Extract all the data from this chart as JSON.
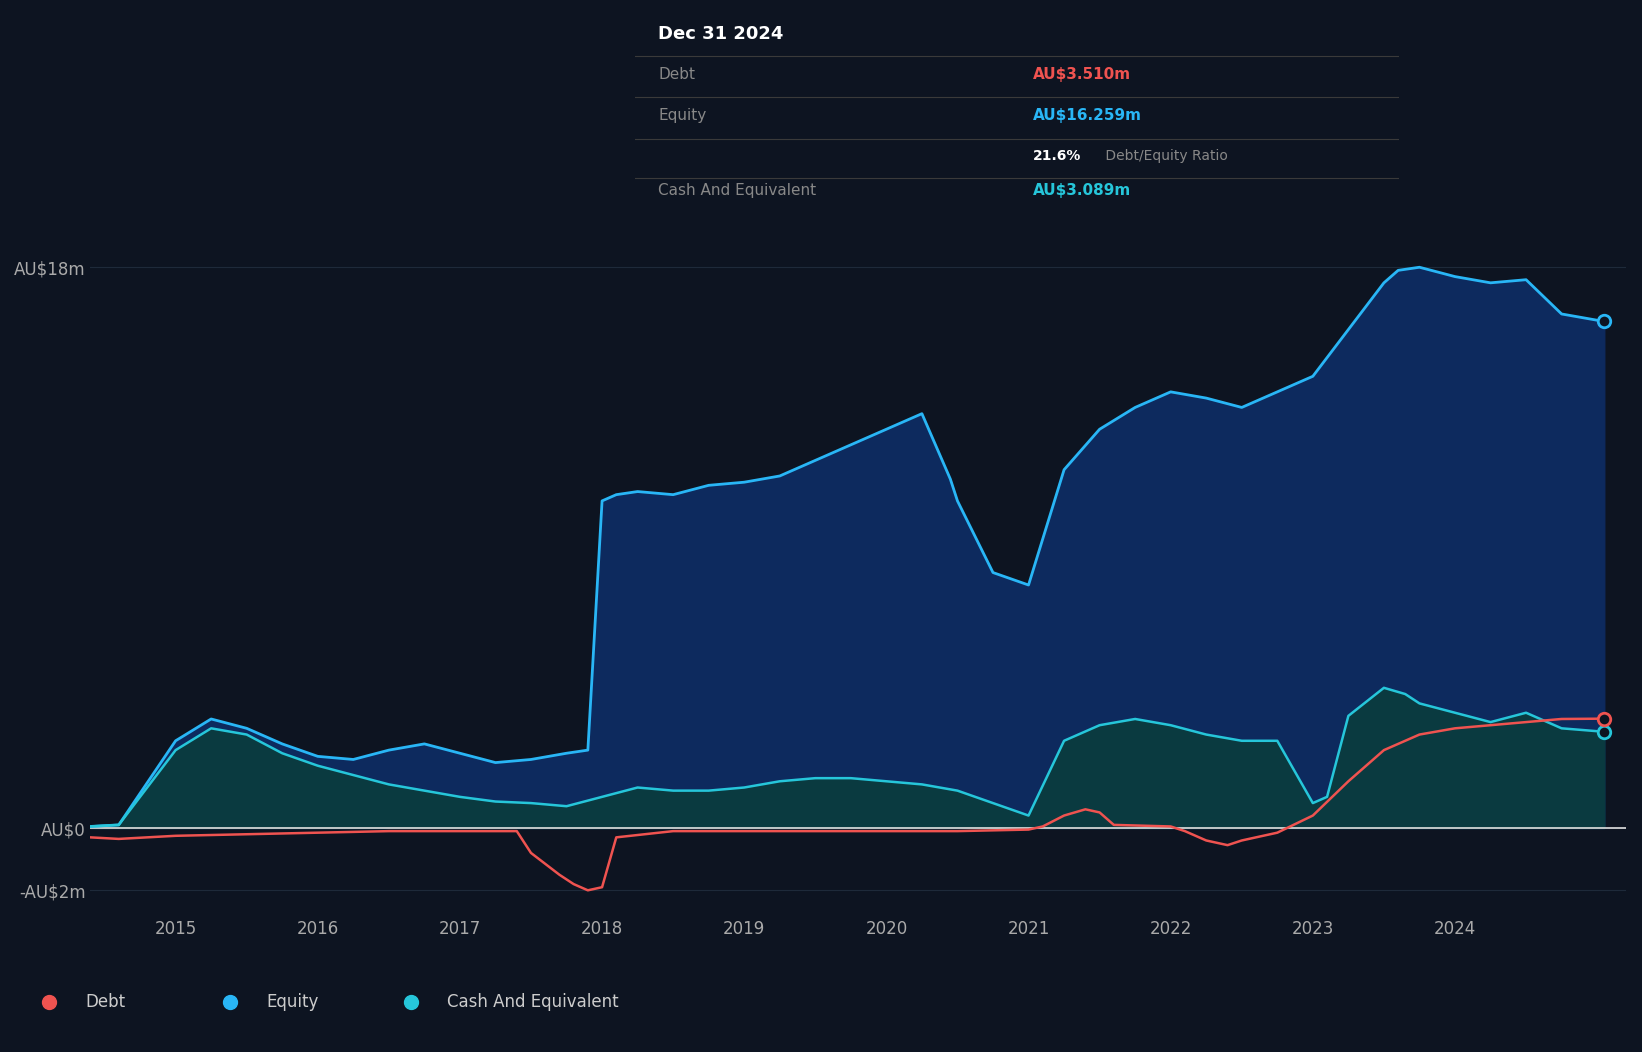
{
  "background_color": "#0d1421",
  "plot_bg_color": "#0d1421",
  "grid_color": "#1e2a3a",
  "equity_color": "#29b6f6",
  "equity_fill": "#0d2a5e",
  "debt_color": "#ef5350",
  "cash_color": "#26c6da",
  "cash_fill": "#0a3a40",
  "zero_line_color": "#e0e0e0",
  "tooltip_bg": "#000000",
  "tooltip_title": "Dec 31 2024",
  "tooltip_debt_label": "Debt",
  "tooltip_debt_value": "AU$3.510m",
  "tooltip_equity_label": "Equity",
  "tooltip_equity_value": "AU$16.259m",
  "tooltip_ratio_pct": "21.6%",
  "tooltip_ratio_text": " Debt/Equity Ratio",
  "tooltip_cash_label": "Cash And Equivalent",
  "tooltip_cash_value": "AU$3.089m",
  "legend_items": [
    "Debt",
    "Equity",
    "Cash And Equivalent"
  ],
  "legend_colors": [
    "#ef5350",
    "#29b6f6",
    "#26c6da"
  ],
  "ytick_vals": [
    -2,
    0,
    18
  ],
  "ytick_labels": [
    "-AU$2m",
    "AU$0",
    "AU$18m"
  ],
  "xtick_vals": [
    2015,
    2016,
    2017,
    2018,
    2019,
    2020,
    2021,
    2022,
    2023,
    2024
  ],
  "xlim": [
    2014.4,
    2025.2
  ],
  "ylim": [
    -2.8,
    20.5
  ],
  "eq_x": [
    2014.4,
    2014.6,
    2015.0,
    2015.25,
    2015.5,
    2015.75,
    2016.0,
    2016.25,
    2016.5,
    2016.75,
    2017.0,
    2017.25,
    2017.5,
    2017.75,
    2017.9,
    2018.0,
    2018.1,
    2018.25,
    2018.5,
    2018.75,
    2019.0,
    2019.25,
    2019.5,
    2019.75,
    2020.0,
    2020.25,
    2020.45,
    2020.5,
    2020.75,
    2021.0,
    2021.25,
    2021.5,
    2021.75,
    2022.0,
    2022.25,
    2022.5,
    2022.75,
    2023.0,
    2023.25,
    2023.5,
    2023.6,
    2023.75,
    2024.0,
    2024.25,
    2024.5,
    2024.75,
    2025.05
  ],
  "eq_y": [
    0.05,
    0.1,
    2.8,
    3.5,
    3.2,
    2.7,
    2.3,
    2.2,
    2.5,
    2.7,
    2.4,
    2.1,
    2.2,
    2.4,
    2.5,
    10.5,
    10.7,
    10.8,
    10.7,
    11.0,
    11.1,
    11.3,
    11.8,
    12.3,
    12.8,
    13.3,
    11.2,
    10.5,
    8.2,
    7.8,
    11.5,
    12.8,
    13.5,
    14.0,
    13.8,
    13.5,
    14.0,
    14.5,
    16.0,
    17.5,
    17.9,
    18.0,
    17.7,
    17.5,
    17.6,
    16.5,
    16.259
  ],
  "cash_x": [
    2014.4,
    2014.6,
    2015.0,
    2015.25,
    2015.5,
    2015.75,
    2016.0,
    2016.25,
    2016.5,
    2016.75,
    2017.0,
    2017.25,
    2017.5,
    2017.75,
    2018.0,
    2018.25,
    2018.5,
    2018.75,
    2019.0,
    2019.25,
    2019.5,
    2019.75,
    2020.0,
    2020.25,
    2020.5,
    2020.75,
    2021.0,
    2021.25,
    2021.5,
    2021.75,
    2022.0,
    2022.25,
    2022.5,
    2022.75,
    2023.0,
    2023.1,
    2023.25,
    2023.5,
    2023.65,
    2023.75,
    2024.0,
    2024.25,
    2024.5,
    2024.75,
    2025.05
  ],
  "cash_y": [
    0.05,
    0.1,
    2.5,
    3.2,
    3.0,
    2.4,
    2.0,
    1.7,
    1.4,
    1.2,
    1.0,
    0.85,
    0.8,
    0.7,
    1.0,
    1.3,
    1.2,
    1.2,
    1.3,
    1.5,
    1.6,
    1.6,
    1.5,
    1.4,
    1.2,
    0.8,
    0.4,
    2.8,
    3.3,
    3.5,
    3.3,
    3.0,
    2.8,
    2.8,
    0.8,
    1.0,
    3.6,
    4.5,
    4.3,
    4.0,
    3.7,
    3.4,
    3.7,
    3.2,
    3.089
  ],
  "debt_x": [
    2014.4,
    2014.6,
    2015.0,
    2015.5,
    2016.0,
    2016.5,
    2017.0,
    2017.4,
    2017.5,
    2017.7,
    2017.8,
    2017.9,
    2018.0,
    2018.1,
    2018.5,
    2019.0,
    2019.5,
    2020.0,
    2020.5,
    2021.0,
    2021.1,
    2021.25,
    2021.4,
    2021.5,
    2021.6,
    2022.0,
    2022.1,
    2022.25,
    2022.4,
    2022.5,
    2022.75,
    2023.0,
    2023.25,
    2023.5,
    2023.75,
    2024.0,
    2024.25,
    2024.5,
    2024.75,
    2025.05
  ],
  "debt_y": [
    -0.3,
    -0.35,
    -0.25,
    -0.2,
    -0.15,
    -0.1,
    -0.1,
    -0.1,
    -0.8,
    -1.5,
    -1.8,
    -2.0,
    -1.9,
    -0.3,
    -0.1,
    -0.1,
    -0.1,
    -0.1,
    -0.1,
    -0.05,
    0.05,
    0.4,
    0.6,
    0.5,
    0.1,
    0.05,
    -0.1,
    -0.4,
    -0.55,
    -0.4,
    -0.15,
    0.4,
    1.5,
    2.5,
    3.0,
    3.2,
    3.3,
    3.4,
    3.5,
    3.51
  ]
}
